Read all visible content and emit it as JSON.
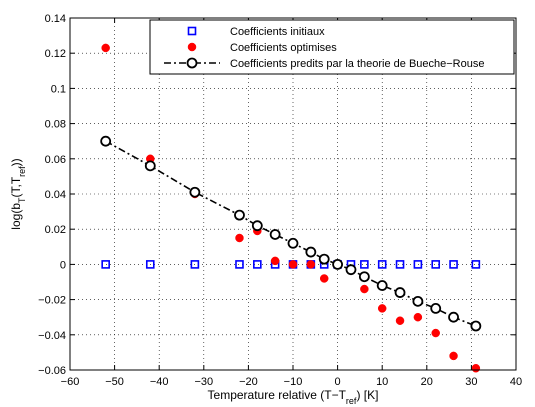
{
  "chart_data": {
    "type": "scatter",
    "xlabel_main": "Temperature relative (T−T",
    "xlabel_sub": "ref",
    "xlabel_tail": ") [K]",
    "ylabel_main": "log(b",
    "ylabel_sub1": "T",
    "ylabel_mid": "(T,T",
    "ylabel_sub2": "ref",
    "ylabel_tail": "))",
    "xlim": [
      -60,
      40
    ],
    "ylim": [
      -0.06,
      0.14
    ],
    "xticks": [
      -60,
      -50,
      -40,
      -30,
      -20,
      -10,
      0,
      10,
      20,
      30,
      40
    ],
    "yticks": [
      -0.06,
      -0.04,
      -0.02,
      0,
      0.02,
      0.04,
      0.06,
      0.08,
      0.1,
      0.12,
      0.14
    ],
    "xtick_labels": [
      "−60",
      "−50",
      "−40",
      "−30",
      "−20",
      "−10",
      "0",
      "10",
      "20",
      "30",
      "40"
    ],
    "ytick_labels": [
      "−0.06",
      "−0.04",
      "−0.02",
      "0",
      "0.02",
      "0.04",
      "0.06",
      "0.08",
      "0.1",
      "0.12",
      "0.14"
    ],
    "grid": true,
    "legend_position": "top-right",
    "series": [
      {
        "name": "Coefficients initiaux",
        "marker": "square",
        "color": "#0000ff",
        "x": [
          -52,
          -42,
          -32,
          -22,
          -18,
          -14,
          -10,
          -6,
          -3,
          0,
          3,
          6,
          10,
          14,
          18,
          22,
          26,
          31
        ],
        "y": [
          0,
          0,
          0,
          0,
          0,
          0,
          0,
          0,
          0,
          0,
          0,
          0,
          0,
          0,
          0,
          0,
          0,
          0
        ]
      },
      {
        "name": "Coefficients optimises",
        "marker": "dot",
        "color": "#ff0000",
        "x": [
          -52,
          -42,
          -32,
          -22,
          -18,
          -14,
          -10,
          -6,
          -3,
          0,
          3,
          6,
          10,
          14,
          18,
          22,
          26,
          31
        ],
        "y": [
          0.123,
          0.06,
          0.04,
          0.015,
          0.019,
          0.002,
          0.0,
          0.0,
          -0.008,
          0.0,
          -0.003,
          -0.014,
          -0.025,
          -0.032,
          -0.03,
          -0.039,
          -0.052,
          -0.059
        ]
      },
      {
        "name": "Coefficients predits par la theorie de Bueche−Rouse",
        "marker": "circle-line",
        "color": "#000000",
        "x": [
          -52,
          -42,
          -32,
          -22,
          -18,
          -14,
          -10,
          -6,
          -3,
          0,
          3,
          6,
          10,
          14,
          18,
          22,
          26,
          31
        ],
        "y": [
          0.07,
          0.056,
          0.041,
          0.028,
          0.022,
          0.017,
          0.012,
          0.007,
          0.003,
          0.0,
          -0.003,
          -0.007,
          -0.012,
          -0.016,
          -0.021,
          -0.025,
          -0.03,
          -0.035
        ]
      }
    ]
  }
}
